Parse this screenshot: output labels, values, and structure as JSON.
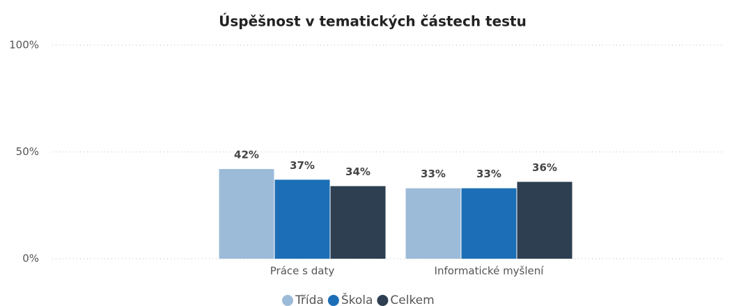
{
  "chart_data": {
    "type": "bar",
    "title": "Úspěšnost v tematických částech testu",
    "categories": [
      "Práce s daty",
      "Informatické myšlení"
    ],
    "series": [
      {
        "name": "Třída",
        "color": "#9cbbd8",
        "values": [
          42,
          33
        ],
        "value_labels": [
          "42%",
          "33%"
        ]
      },
      {
        "name": "Škola",
        "color": "#1c6fb6",
        "values": [
          37,
          33
        ],
        "value_labels": [
          "37%",
          "33%"
        ]
      },
      {
        "name": "Celkem",
        "color": "#2d3f51",
        "values": [
          34,
          36
        ],
        "value_labels": [
          "34%",
          "36%"
        ]
      }
    ],
    "ylim": [
      0,
      100
    ],
    "yticks": [
      {
        "value": 0,
        "label": "0%"
      },
      {
        "value": 50,
        "label": "50%"
      },
      {
        "value": 100,
        "label": "100%"
      }
    ],
    "grid": true,
    "legend": "bottom"
  }
}
